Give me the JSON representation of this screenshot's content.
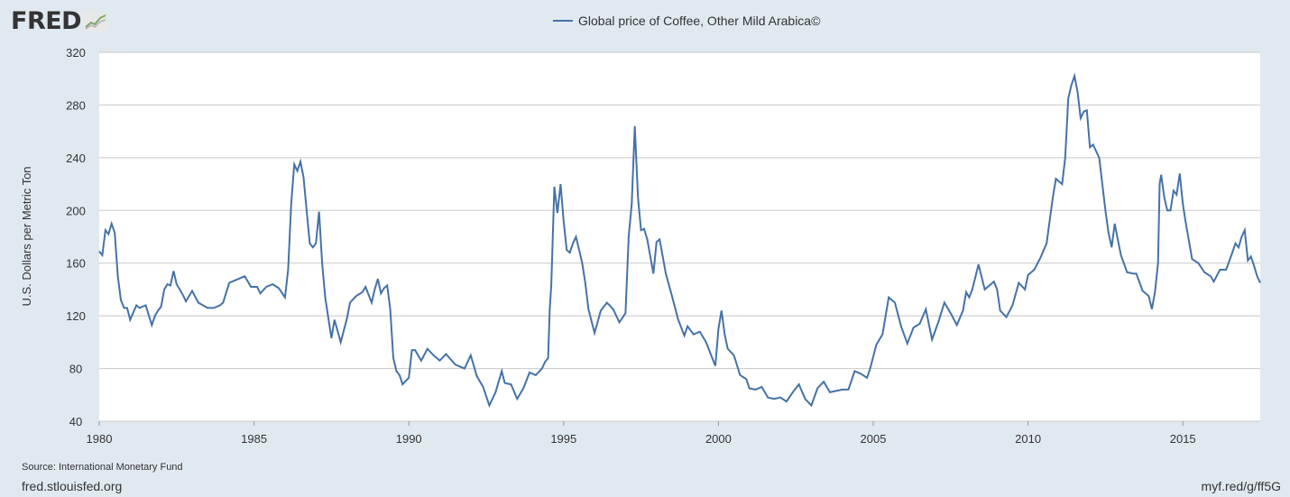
{
  "brand": {
    "name": "FRED"
  },
  "footer": {
    "source": "Source: International Monetary Fund",
    "site": "fred.stlouisfed.org",
    "short_url": "myf.red/g/ff5G"
  },
  "colors": {
    "series": "#4572a7",
    "background": "#e1e9f0",
    "plot": "#ffffff",
    "grid": "#c8c8c8"
  },
  "chart_data": {
    "type": "line",
    "ylabel": "U.S. Dollars per Metric Ton",
    "ylim": [
      40,
      320
    ],
    "yticks": [
      40,
      80,
      120,
      160,
      200,
      240,
      280,
      320
    ],
    "xlim": [
      1980,
      2017.5
    ],
    "xticks": [
      1980,
      1985,
      1990,
      1995,
      2000,
      2005,
      2010,
      2015
    ],
    "grid": true,
    "legend_position": "top-center",
    "series": [
      {
        "name": "Global price of Coffee, Other Mild Arabica©",
        "x": [
          1980.0,
          1980.1,
          1980.2,
          1980.3,
          1980.4,
          1980.5,
          1980.6,
          1980.7,
          1980.8,
          1980.9,
          1981.0,
          1981.2,
          1981.3,
          1981.5,
          1981.7,
          1981.8,
          1981.9,
          1982.0,
          1982.1,
          1982.2,
          1982.3,
          1982.4,
          1982.5,
          1982.6,
          1982.7,
          1982.8,
          1983.0,
          1983.2,
          1983.5,
          1983.7,
          1983.9,
          1984.0,
          1984.2,
          1984.5,
          1984.7,
          1984.9,
          1985.1,
          1985.2,
          1985.4,
          1985.6,
          1985.8,
          1986.0,
          1986.1,
          1986.2,
          1986.3,
          1986.4,
          1986.5,
          1986.6,
          1986.7,
          1986.8,
          1986.9,
          1987.0,
          1987.1,
          1987.2,
          1987.3,
          1987.5,
          1987.6,
          1987.8,
          1988.0,
          1988.1,
          1988.3,
          1988.5,
          1988.6,
          1988.8,
          1988.9,
          1989.0,
          1989.1,
          1989.2,
          1989.3,
          1989.4,
          1989.5,
          1989.6,
          1989.7,
          1989.8,
          1990.0,
          1990.1,
          1990.2,
          1990.4,
          1990.6,
          1990.8,
          1991.0,
          1991.2,
          1991.5,
          1991.8,
          1992.0,
          1992.2,
          1992.4,
          1992.6,
          1992.8,
          1993.0,
          1993.1,
          1993.3,
          1993.5,
          1993.7,
          1993.9,
          1994.1,
          1994.3,
          1994.4,
          1994.5,
          1994.55,
          1994.6,
          1994.7,
          1994.8,
          1994.9,
          1995.0,
          1995.1,
          1995.2,
          1995.3,
          1995.4,
          1995.5,
          1995.6,
          1995.7,
          1995.8,
          1996.0,
          1996.2,
          1996.4,
          1996.6,
          1996.8,
          1997.0,
          1997.1,
          1997.2,
          1997.3,
          1997.4,
          1997.5,
          1997.6,
          1997.7,
          1997.8,
          1997.9,
          1998.0,
          1998.1,
          1998.3,
          1998.5,
          1998.7,
          1998.9,
          1999.0,
          1999.2,
          1999.4,
          1999.6,
          1999.8,
          1999.9,
          2000.0,
          2000.1,
          2000.2,
          2000.3,
          2000.5,
          2000.7,
          2000.9,
          2001.0,
          2001.2,
          2001.4,
          2001.6,
          2001.8,
          2002.0,
          2002.2,
          2002.4,
          2002.6,
          2002.8,
          2003.0,
          2003.2,
          2003.4,
          2003.6,
          2003.8,
          2004.0,
          2004.2,
          2004.4,
          2004.6,
          2004.8,
          2004.9,
          2005.1,
          2005.3,
          2005.5,
          2005.7,
          2005.9,
          2006.1,
          2006.3,
          2006.5,
          2006.7,
          2006.9,
          2007.1,
          2007.3,
          2007.5,
          2007.7,
          2007.9,
          2008.0,
          2008.1,
          2008.2,
          2008.4,
          2008.6,
          2008.8,
          2008.9,
          2009.0,
          2009.1,
          2009.3,
          2009.5,
          2009.7,
          2009.9,
          2010.0,
          2010.2,
          2010.4,
          2010.6,
          2010.8,
          2010.9,
          2011.1,
          2011.2,
          2011.3,
          2011.4,
          2011.5,
          2011.6,
          2011.7,
          2011.8,
          2011.9,
          2012.0,
          2012.1,
          2012.3,
          2012.5,
          2012.6,
          2012.7,
          2012.8,
          2012.9,
          2013.0,
          2013.2,
          2013.4,
          2013.5,
          2013.7,
          2013.9,
          2014.0,
          2014.1,
          2014.2,
          2014.25,
          2014.3,
          2014.4,
          2014.5,
          2014.6,
          2014.7,
          2014.8,
          2014.9,
          2015.0,
          2015.1,
          2015.3,
          2015.5,
          2015.7,
          2015.9,
          2016.0,
          2016.2,
          2016.4,
          2016.6,
          2016.7,
          2016.8,
          2016.9,
          2017.0,
          2017.1,
          2017.2,
          2017.3,
          2017.4,
          2017.5
        ],
        "values": [
          169,
          166,
          185,
          182,
          190,
          183,
          150,
          132,
          126,
          126,
          117,
          128,
          126,
          128,
          113,
          120,
          124,
          127,
          140,
          144,
          143,
          154,
          144,
          140,
          136,
          131,
          139,
          130,
          126,
          126,
          128,
          130,
          145,
          148,
          150,
          142,
          142,
          137,
          142,
          144,
          141,
          134,
          155,
          205,
          235,
          230,
          237,
          225,
          200,
          175,
          172,
          175,
          199,
          160,
          134,
          103,
          117,
          100,
          118,
          130,
          135,
          138,
          142,
          130,
          140,
          148,
          137,
          141,
          143,
          125,
          88,
          78,
          75,
          68,
          73,
          94,
          94,
          86,
          95,
          90,
          86,
          91,
          83,
          80,
          90,
          74,
          66,
          52,
          62,
          78,
          69,
          68,
          57,
          65,
          77,
          75,
          80,
          85,
          88,
          125,
          143,
          218,
          198,
          220,
          192,
          170,
          168,
          175,
          180,
          170,
          160,
          145,
          125,
          107,
          124,
          130,
          125,
          115,
          122,
          180,
          205,
          264,
          210,
          185,
          186,
          178,
          165,
          152,
          176,
          178,
          152,
          135,
          117,
          105,
          112,
          106,
          108,
          100,
          88,
          82,
          110,
          124,
          106,
          95,
          90,
          75,
          72,
          65,
          64,
          66,
          58,
          57,
          58,
          55,
          62,
          68,
          57,
          52,
          65,
          70,
          62,
          63,
          64,
          64,
          78,
          76,
          73,
          80,
          98,
          106,
          134,
          130,
          112,
          99,
          111,
          114,
          125,
          102,
          115,
          130,
          122,
          113,
          124,
          138,
          134,
          140,
          159,
          140,
          144,
          146,
          140,
          124,
          119,
          128,
          145,
          140,
          151,
          155,
          164,
          175,
          210,
          224,
          220,
          240,
          285,
          295,
          302,
          290,
          270,
          275,
          276,
          248,
          250,
          240,
          200,
          183,
          172,
          190,
          178,
          166,
          153,
          152,
          152,
          139,
          135,
          125,
          138,
          160,
          220,
          227,
          210,
          200,
          200,
          215,
          212,
          228,
          205,
          190,
          163,
          160,
          153,
          150,
          146,
          155,
          155,
          168,
          175,
          172,
          180,
          185,
          162,
          165,
          158,
          150,
          145
        ]
      }
    ]
  }
}
